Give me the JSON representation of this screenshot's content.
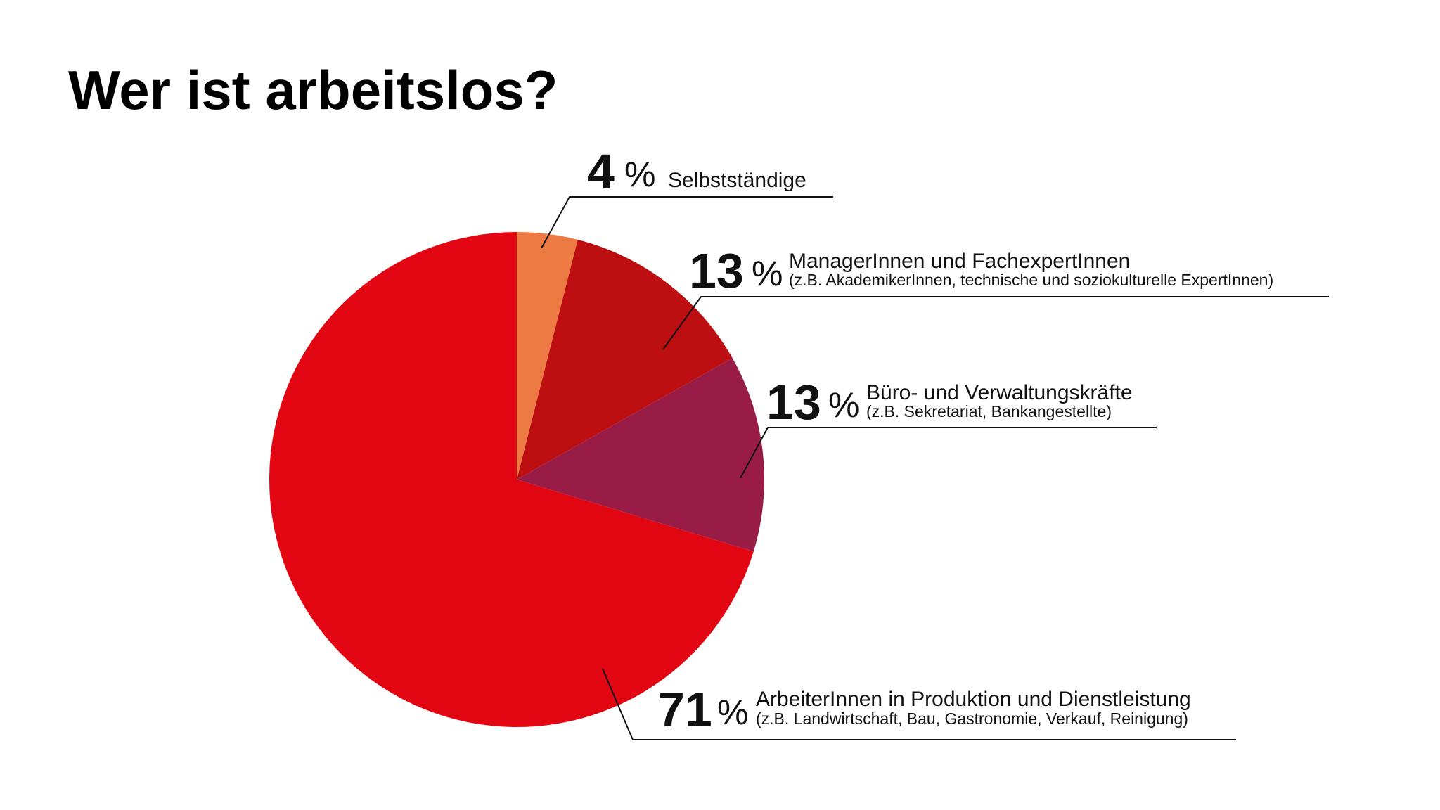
{
  "chart_data": {
    "type": "pie",
    "title": "Wer ist arbeitslos?",
    "start": "12 o'clock",
    "direction": "clockwise",
    "slices": [
      {
        "key": "selbststaendige",
        "value": 4,
        "pct_label": "4",
        "pct_sign": "%",
        "label": "Selbstständige",
        "sublabel": "",
        "color": "#ee7a43"
      },
      {
        "key": "manager",
        "value": 13,
        "pct_label": "13",
        "pct_sign": "%",
        "label": "ManagerInnen und FachexpertInnen",
        "sublabel": "(z.B. AkademikerInnen, technische und soziokulturelle ExpertInnen)",
        "color": "#bd0f11"
      },
      {
        "key": "buero",
        "value": 13,
        "pct_label": "13",
        "pct_sign": "%",
        "label": "Büro- und Verwaltungskräfte",
        "sublabel": "(z.B. Sekretariat, Bankangestellte)",
        "color": "#991c47"
      },
      {
        "key": "arbeiter",
        "value": 71,
        "pct_label": "71",
        "pct_sign": "%",
        "label": "ArbeiterInnen in Produktion und Dienstleistung",
        "sublabel": "(z.B. Landwirtschaft, Bau, Gastronomie, Verkauf, Reinigung)",
        "color": "#e20613"
      }
    ]
  }
}
